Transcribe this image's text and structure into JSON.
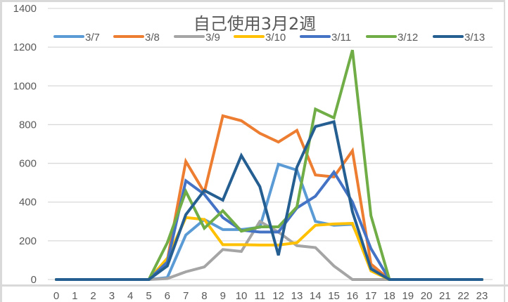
{
  "chart_data": {
    "type": "line",
    "title": "自己使用3月2週",
    "xlabel": "",
    "ylabel": "",
    "x": [
      0,
      1,
      2,
      3,
      4,
      5,
      6,
      7,
      8,
      9,
      10,
      11,
      12,
      13,
      14,
      15,
      16,
      17,
      18,
      19,
      20,
      21,
      22,
      23
    ],
    "ylim": [
      0,
      1400
    ],
    "yticks": [
      0,
      200,
      400,
      600,
      800,
      1000,
      1200,
      1400
    ],
    "grid": true,
    "legend_position": "top",
    "series": [
      {
        "name": "3/7",
        "color": "#5B9BD5",
        "values": [
          0,
          0,
          0,
          0,
          0,
          0,
          10,
          230,
          310,
          258,
          258,
          270,
          595,
          565,
          300,
          280,
          285,
          70,
          0,
          0,
          0,
          0,
          0,
          0
        ]
      },
      {
        "name": "3/8",
        "color": "#ED7D31",
        "values": [
          0,
          0,
          0,
          0,
          0,
          0,
          100,
          610,
          450,
          845,
          820,
          755,
          710,
          770,
          540,
          530,
          665,
          80,
          0,
          0,
          0,
          0,
          0,
          0
        ]
      },
      {
        "name": "3/9",
        "color": "#A5A5A5",
        "values": [
          0,
          0,
          0,
          0,
          0,
          0,
          5,
          40,
          65,
          155,
          145,
          300,
          245,
          175,
          165,
          70,
          0,
          0,
          0,
          0,
          0,
          0,
          0,
          0
        ]
      },
      {
        "name": "3/10",
        "color": "#FFC000",
        "values": [
          0,
          0,
          0,
          0,
          0,
          0,
          110,
          320,
          310,
          180,
          180,
          178,
          178,
          190,
          280,
          287,
          290,
          45,
          0,
          0,
          0,
          0,
          0,
          0
        ]
      },
      {
        "name": "3/11",
        "color": "#4472C4",
        "values": [
          0,
          0,
          0,
          0,
          0,
          0,
          90,
          510,
          440,
          320,
          255,
          245,
          245,
          370,
          430,
          555,
          400,
          160,
          0,
          0,
          0,
          0,
          0,
          0
        ]
      },
      {
        "name": "3/12",
        "color": "#70AD47",
        "values": [
          0,
          0,
          0,
          0,
          0,
          0,
          190,
          455,
          265,
          355,
          250,
          272,
          272,
          375,
          880,
          835,
          1185,
          330,
          0,
          0,
          0,
          0,
          0,
          0
        ]
      },
      {
        "name": "3/13",
        "color": "#255E91",
        "values": [
          0,
          0,
          0,
          0,
          0,
          0,
          70,
          335,
          460,
          410,
          640,
          480,
          125,
          580,
          790,
          815,
          350,
          55,
          0,
          0,
          0,
          0,
          0,
          0
        ]
      }
    ]
  }
}
